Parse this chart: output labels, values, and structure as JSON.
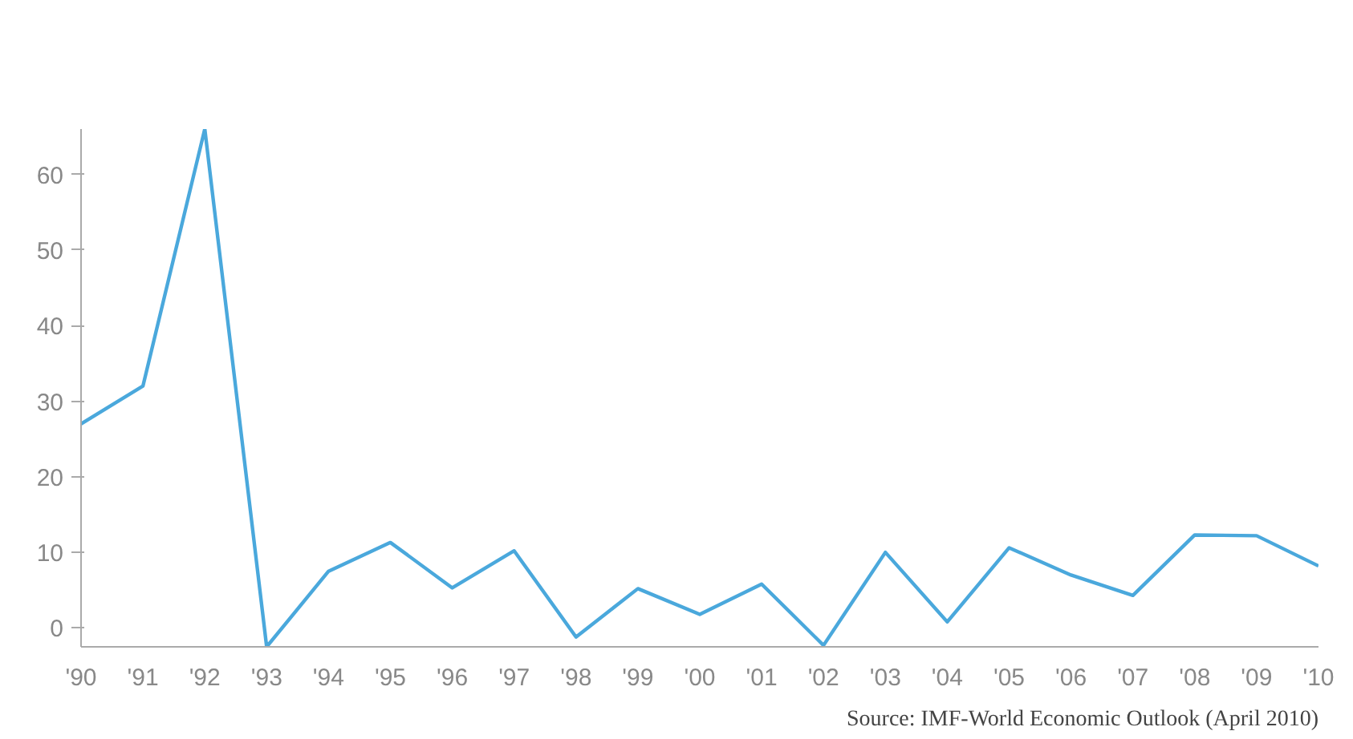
{
  "chart_data": {
    "type": "line",
    "categories": [
      "'90",
      "'91",
      "'92",
      "'93",
      "'94",
      "'95",
      "'96",
      "'97",
      "'98",
      "'99",
      "'00",
      "'01",
      "'02",
      "'03",
      "'04",
      "'05",
      "'06",
      "'07",
      "'08",
      "'09",
      "'10"
    ],
    "series": [
      {
        "color": "#4aa8dc",
        "values": [
          27,
          32,
          66,
          -2.5,
          7.5,
          11.3,
          5.3,
          10.2,
          -1.2,
          5.2,
          1.8,
          5.8,
          -2.3,
          10,
          0.8,
          10.6,
          7,
          4.3,
          12.3,
          12.2,
          8.2
        ]
      }
    ],
    "ylim": [
      -2.5,
      66
    ],
    "yticks": [
      0,
      10,
      20,
      30,
      40,
      50,
      60
    ],
    "grid": false,
    "marker": "none",
    "line_style": "solid",
    "annotations": [
      "Source: IMF-World Economic Outlook (April 2010)"
    ]
  }
}
